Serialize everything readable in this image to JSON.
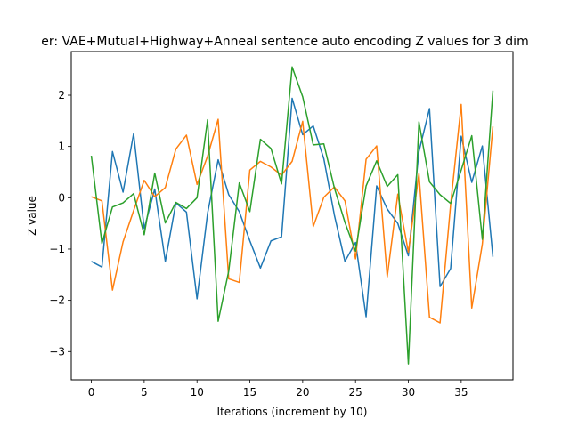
{
  "chart_data": {
    "type": "line",
    "title": "er: VAE+Mutual+Highway+Anneal sentence auto encoding Z values for 3 dim",
    "xlabel": "Iterations (increment by 10)",
    "ylabel": "Z value",
    "xlim": [
      -1.9,
      39.9
    ],
    "ylim": [
      -3.55,
      2.85
    ],
    "xticks": [
      0,
      5,
      10,
      15,
      20,
      25,
      30,
      35
    ],
    "yticks": [
      -3,
      -2,
      -1,
      0,
      1,
      2
    ],
    "grid": false,
    "legend": "none",
    "x": [
      0,
      1,
      2,
      3,
      4,
      5,
      6,
      7,
      8,
      9,
      10,
      11,
      12,
      13,
      14,
      15,
      16,
      17,
      18,
      19,
      20,
      21,
      22,
      23,
      24,
      25,
      26,
      27,
      28,
      29,
      30,
      31,
      32,
      33,
      34,
      35,
      36,
      37,
      38
    ],
    "series": [
      {
        "color": "#1f77b4",
        "values": [
          -1.24,
          -1.35,
          0.9,
          0.11,
          1.25,
          -0.6,
          0.17,
          -1.24,
          -0.1,
          -0.28,
          -1.97,
          -0.3,
          0.74,
          0.06,
          -0.27,
          -0.84,
          -1.37,
          -0.84,
          -0.76,
          1.94,
          1.23,
          1.4,
          0.76,
          -0.34,
          -1.24,
          -0.87,
          -2.32,
          0.23,
          -0.22,
          -0.5,
          -1.13,
          0.9,
          1.74,
          -1.73,
          -1.38,
          1.2,
          0.3,
          1.01,
          -1.15
        ]
      },
      {
        "color": "#ff7f0e",
        "values": [
          0.02,
          -0.06,
          -1.8,
          -0.86,
          -0.25,
          0.34,
          0.02,
          0.2,
          0.95,
          1.22,
          0.26,
          0.81,
          1.53,
          -1.58,
          -1.65,
          0.54,
          0.71,
          0.6,
          0.44,
          0.71,
          1.49,
          -0.56,
          0.01,
          0.21,
          -0.06,
          -1.19,
          0.75,
          1.01,
          -1.54,
          0.07,
          -1.06,
          0.47,
          -2.33,
          -2.44,
          -0.13,
          1.82,
          -2.15,
          -0.9,
          1.39
        ]
      },
      {
        "color": "#2ca02c",
        "values": [
          0.82,
          -0.89,
          -0.18,
          -0.1,
          0.08,
          -0.72,
          0.48,
          -0.49,
          -0.09,
          -0.21,
          0.0,
          1.52,
          -2.41,
          -1.43,
          0.29,
          -0.27,
          1.14,
          0.96,
          0.27,
          2.55,
          1.97,
          1.03,
          1.05,
          0.19,
          -0.48,
          -1.04,
          0.23,
          0.72,
          0.22,
          0.45,
          -3.24,
          1.48,
          0.31,
          0.06,
          -0.11,
          0.54,
          1.21,
          -0.81,
          2.09
        ]
      }
    ]
  }
}
